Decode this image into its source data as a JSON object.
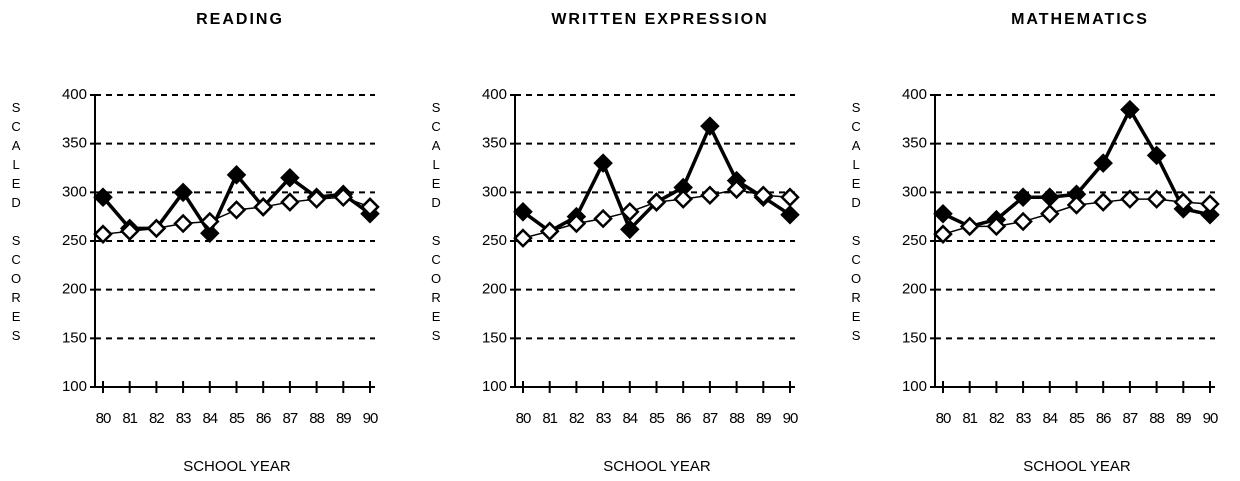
{
  "chart_data": [
    {
      "type": "line",
      "title": "READING",
      "ylabel": "SCALED SCORES",
      "xlabel": "SCHOOL YEAR",
      "categories": [
        "80",
        "81",
        "82",
        "83",
        "84",
        "85",
        "86",
        "87",
        "88",
        "89",
        "90"
      ],
      "ylim": [
        100,
        400
      ],
      "yticks": [
        100,
        150,
        200,
        250,
        300,
        350,
        400
      ],
      "grid": true,
      "series": [
        {
          "color": "#000000",
          "filled": true,
          "values": [
            295,
            263,
            263,
            300,
            258,
            318,
            285,
            315,
            295,
            298,
            278
          ]
        },
        {
          "color": "#000000",
          "filled": false,
          "values": [
            257,
            260,
            263,
            268,
            270,
            282,
            285,
            290,
            293,
            295,
            285
          ]
        }
      ]
    },
    {
      "type": "line",
      "title": "WRITTEN   EXPRESSION",
      "ylabel": "SCALED SCORES",
      "xlabel": "SCHOOL YEAR",
      "categories": [
        "80",
        "81",
        "82",
        "83",
        "84",
        "85",
        "86",
        "87",
        "88",
        "89",
        "90"
      ],
      "ylim": [
        100,
        400
      ],
      "yticks": [
        100,
        150,
        200,
        250,
        300,
        350,
        400
      ],
      "grid": true,
      "series": [
        {
          "color": "#000000",
          "filled": true,
          "values": [
            280,
            260,
            275,
            330,
            262,
            290,
            305,
            368,
            312,
            295,
            277
          ]
        },
        {
          "color": "#000000",
          "filled": false,
          "values": [
            253,
            260,
            268,
            273,
            280,
            290,
            293,
            297,
            303,
            297,
            295
          ]
        }
      ]
    },
    {
      "type": "line",
      "title": "MATHEMATICS",
      "ylabel": "SCALED SCORES",
      "xlabel": "SCHOOL YEAR",
      "categories": [
        "80",
        "81",
        "82",
        "83",
        "84",
        "85",
        "86",
        "87",
        "88",
        "89",
        "90"
      ],
      "ylim": [
        100,
        400
      ],
      "yticks": [
        100,
        150,
        200,
        250,
        300,
        350,
        400
      ],
      "grid": true,
      "series": [
        {
          "color": "#000000",
          "filled": true,
          "values": [
            278,
            265,
            272,
            295,
            295,
            298,
            330,
            385,
            338,
            283,
            277
          ]
        },
        {
          "color": "#000000",
          "filled": false,
          "values": [
            257,
            265,
            265,
            270,
            278,
            287,
            290,
            293,
            293,
            290,
            288
          ]
        }
      ]
    }
  ]
}
